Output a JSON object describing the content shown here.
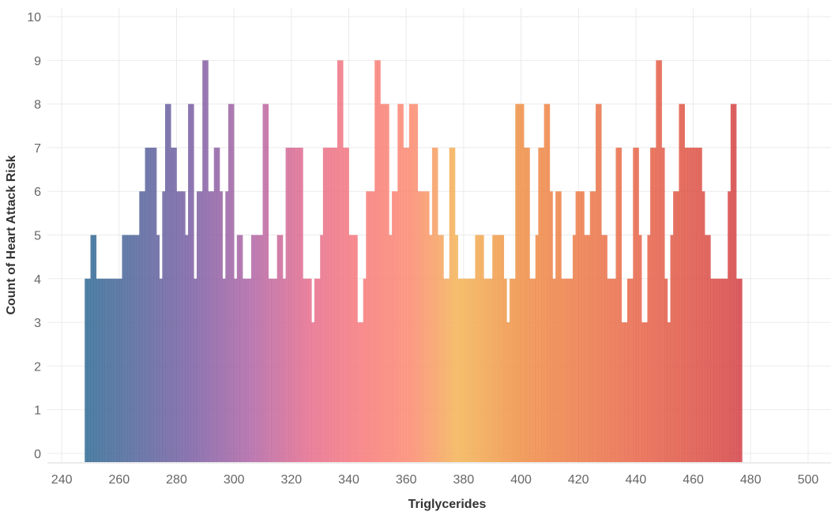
{
  "chart_data": {
    "type": "bar",
    "xlabel": "Triglycerides",
    "ylabel": "Count of Heart Attack Risk",
    "xlim": [
      235,
      508
    ],
    "ylim": [
      -0.2,
      10.2
    ],
    "x_ticks": [
      240,
      260,
      280,
      300,
      320,
      340,
      360,
      380,
      400,
      420,
      440,
      460,
      480,
      500
    ],
    "y_ticks": [
      0,
      1,
      2,
      3,
      4,
      5,
      6,
      7,
      8,
      9,
      10
    ],
    "grid": true,
    "bin_width": 1,
    "bins_start": 248,
    "counts": [
      4,
      4,
      5,
      5,
      4,
      4,
      4,
      4,
      4,
      4,
      4,
      4,
      4,
      5,
      5,
      5,
      5,
      5,
      5,
      6,
      6,
      7,
      7,
      7,
      7,
      5,
      4,
      6,
      8,
      8,
      7,
      7,
      6,
      6,
      6,
      5,
      8,
      8,
      4,
      6,
      6,
      9,
      9,
      6,
      6,
      7,
      7,
      6,
      4,
      6,
      8,
      8,
      4,
      5,
      5,
      4,
      4,
      4,
      5,
      5,
      5,
      5,
      8,
      8,
      4,
      4,
      4,
      5,
      5,
      4,
      7,
      7,
      7,
      7,
      7,
      7,
      4,
      4,
      4,
      3,
      4,
      4,
      5,
      7,
      7,
      7,
      7,
      7,
      9,
      9,
      7,
      7,
      5,
      5,
      5,
      3,
      3,
      4,
      6,
      6,
      6,
      9,
      9,
      8,
      8,
      8,
      5,
      6,
      6,
      8,
      8,
      7,
      7,
      8,
      8,
      8,
      6,
      6,
      6,
      6,
      5,
      7,
      7,
      5,
      5,
      4,
      4,
      7,
      7,
      5,
      4,
      4,
      4,
      4,
      4,
      4,
      5,
      5,
      5,
      4,
      4,
      4,
      5,
      5,
      5,
      5,
      4,
      3,
      4,
      4,
      8,
      8,
      8,
      7,
      7,
      4,
      4,
      5,
      7,
      7,
      8,
      8,
      6,
      4,
      6,
      6,
      4,
      4,
      4,
      4,
      5,
      6,
      6,
      6,
      5,
      5,
      6,
      6,
      8,
      8,
      5,
      5,
      4,
      4,
      4,
      7,
      7,
      3,
      3,
      4,
      4,
      7,
      7,
      5,
      3,
      3,
      5,
      7,
      7,
      9,
      9,
      7,
      4,
      3,
      5,
      6,
      6,
      8,
      8,
      7,
      7,
      7,
      7,
      7,
      7,
      6,
      5,
      5,
      4,
      4,
      4,
      4,
      4,
      4,
      6,
      8,
      8,
      4,
      4
    ],
    "palette_stops": [
      {
        "x": 248,
        "color": "#2f6a94"
      },
      {
        "x": 285,
        "color": "#7a5fa3"
      },
      {
        "x": 305,
        "color": "#ad65a6"
      },
      {
        "x": 325,
        "color": "#e36c8f"
      },
      {
        "x": 345,
        "color": "#f77a7a"
      },
      {
        "x": 362,
        "color": "#fb8a70"
      },
      {
        "x": 378,
        "color": "#f3b456"
      },
      {
        "x": 400,
        "color": "#ef8f46"
      },
      {
        "x": 440,
        "color": "#e8664a"
      },
      {
        "x": 470,
        "color": "#d84a45"
      },
      {
        "x": 500,
        "color": "#c31f49"
      }
    ]
  }
}
